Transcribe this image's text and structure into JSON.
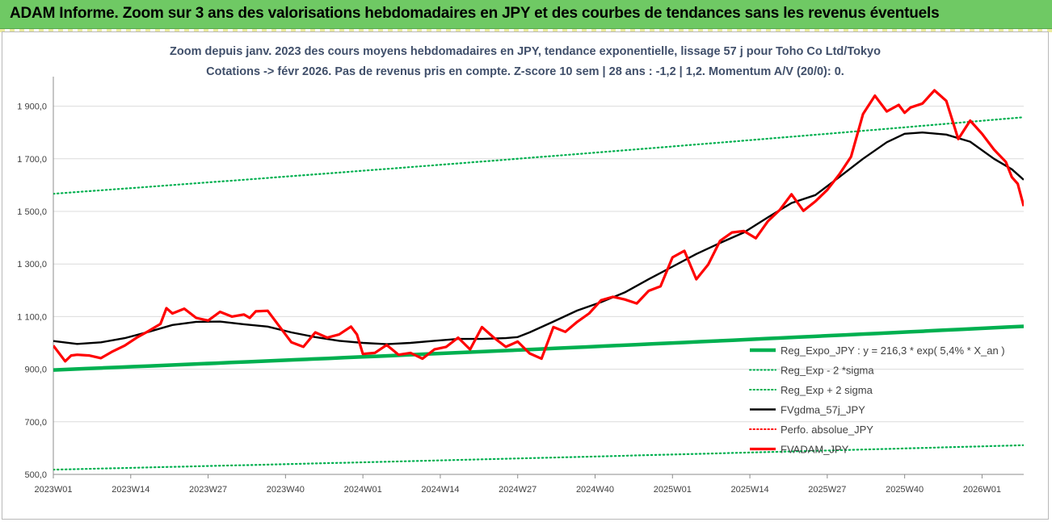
{
  "banner": {
    "title": "ADAM Informe. Zoom sur 3 ans des valorisations hebdomadaires en JPY et des courbes de tendances sans les revenus éventuels"
  },
  "chart_data": {
    "type": "line",
    "title_line1": "Zoom depuis janv. 2023 des cours moyens hebdomadaires en JPY, tendance exponentielle, lissage 57 j pour Toho Co Ltd/Tokyo",
    "title_line2": "Cotations -> févr 2026. Pas de revenus pris en compte. Z-score 10 sem | 28 ans : -1,2 | 1,2. Momentum A/V (20/0): 0.",
    "ylim": [
      500,
      2000
    ],
    "y_ticks": [
      500,
      700,
      900,
      1100,
      1300,
      1500,
      1700,
      1900
    ],
    "y_tick_labels": [
      "500,0",
      "700,0",
      "900,0",
      "1 100,0",
      "1 300,0",
      "1 500,0",
      "1 700,0",
      "1 900,0"
    ],
    "x_range": [
      0,
      163
    ],
    "x_ticks": [
      0,
      13,
      26,
      39,
      52,
      65,
      78,
      91,
      104,
      117,
      130,
      143,
      156
    ],
    "x_tick_labels": [
      "2023W01",
      "2023W14",
      "2023W27",
      "2023W40",
      "2024W01",
      "2024W14",
      "2024W27",
      "2024W40",
      "2025W01",
      "2025W14",
      "2025W27",
      "2025W40",
      "2026W01"
    ],
    "legend": {
      "position": "bottom-right",
      "entries": [
        {
          "label": "Reg_Expo_JPY : y = 216,3 * exp( 5,4% *  X_an )",
          "color": "#00b050",
          "style": "solid-thick"
        },
        {
          "label": "Reg_Exp - 2 *sigma",
          "color": "#00b050",
          "style": "dotted"
        },
        {
          "label": "Reg_Exp + 2 sigma",
          "color": "#00b050",
          "style": "dotted"
        },
        {
          "label": "FVgdma_57j_JPY",
          "color": "#000000",
          "style": "solid"
        },
        {
          "label": "Perfo. absolue_JPY",
          "color": "#ff0000",
          "style": "dotted"
        },
        {
          "label": "FVADAM_JPY",
          "color": "#ff0000",
          "style": "solid-thick"
        }
      ]
    },
    "series": [
      {
        "name": "Reg_Expo_JPY",
        "color": "#00b050",
        "x": [
          0,
          163
        ],
        "values": [
          897,
          1063
        ]
      },
      {
        "name": "Reg_Exp - 2 *sigma",
        "color": "#00b050",
        "x": [
          0,
          163
        ],
        "values": [
          518,
          611
        ]
      },
      {
        "name": "Reg_Exp + 2 sigma",
        "color": "#00b050",
        "x": [
          0,
          163
        ],
        "values": [
          1567,
          1858
        ]
      },
      {
        "name": "FVgdma_57j_JPY",
        "color": "#000000",
        "x": [
          0,
          4,
          8,
          12,
          16,
          20,
          24,
          28,
          32,
          36,
          40,
          44,
          48,
          52,
          56,
          60,
          64,
          68,
          72,
          76,
          78,
          80,
          84,
          88,
          92,
          96,
          100,
          104,
          108,
          112,
          116,
          120,
          124,
          128,
          132,
          136,
          140,
          143,
          146,
          150,
          154,
          158,
          161,
          163
        ],
        "values": [
          1007,
          996,
          1002,
          1018,
          1042,
          1068,
          1080,
          1081,
          1071,
          1062,
          1040,
          1022,
          1008,
          1000,
          995,
          1000,
          1008,
          1015,
          1015,
          1018,
          1022,
          1040,
          1081,
          1123,
          1155,
          1192,
          1242,
          1290,
          1338,
          1380,
          1420,
          1477,
          1532,
          1562,
          1630,
          1700,
          1763,
          1795,
          1800,
          1792,
          1765,
          1700,
          1660,
          1620
        ]
      },
      {
        "name": "Perfo. absolue_JPY",
        "color": "#ff0000",
        "x": [],
        "values": []
      },
      {
        "name": "FVADAM_JPY",
        "color": "#ff0000",
        "x": [
          0,
          2,
          3,
          4,
          6,
          8,
          10,
          12,
          14,
          16,
          18,
          19,
          20,
          22,
          24,
          26,
          28,
          30,
          32,
          33,
          34,
          36,
          38,
          40,
          42,
          44,
          46,
          48,
          50,
          51,
          52,
          54,
          56,
          58,
          60,
          62,
          64,
          66,
          68,
          70,
          72,
          74,
          76,
          78,
          80,
          82,
          84,
          86,
          88,
          90,
          92,
          94,
          96,
          98,
          100,
          102,
          104,
          106,
          108,
          110,
          112,
          114,
          116,
          118,
          120,
          122,
          124,
          126,
          128,
          130,
          132,
          134,
          136,
          138,
          140,
          142,
          143,
          144,
          146,
          148,
          150,
          152,
          154,
          156,
          158,
          160,
          161,
          162,
          163
        ],
        "values": [
          990,
          930,
          952,
          955,
          952,
          942,
          968,
          990,
          1020,
          1045,
          1072,
          1132,
          1112,
          1130,
          1095,
          1085,
          1118,
          1100,
          1108,
          1095,
          1120,
          1122,
          1062,
          1002,
          985,
          1040,
          1020,
          1032,
          1062,
          1032,
          958,
          962,
          992,
          955,
          962,
          940,
          975,
          985,
          1020,
          975,
          1060,
          1020,
          985,
          1005,
          960,
          940,
          1060,
          1042,
          1080,
          1112,
          1162,
          1175,
          1165,
          1150,
          1198,
          1215,
          1325,
          1350,
          1242,
          1298,
          1388,
          1420,
          1425,
          1398,
          1462,
          1505,
          1565,
          1502,
          1538,
          1582,
          1640,
          1708,
          1870,
          1940,
          1880,
          1905,
          1875,
          1895,
          1910,
          1960,
          1920,
          1775,
          1845,
          1795,
          1735,
          1688,
          1630,
          1605,
          1520
        ]
      }
    ]
  }
}
